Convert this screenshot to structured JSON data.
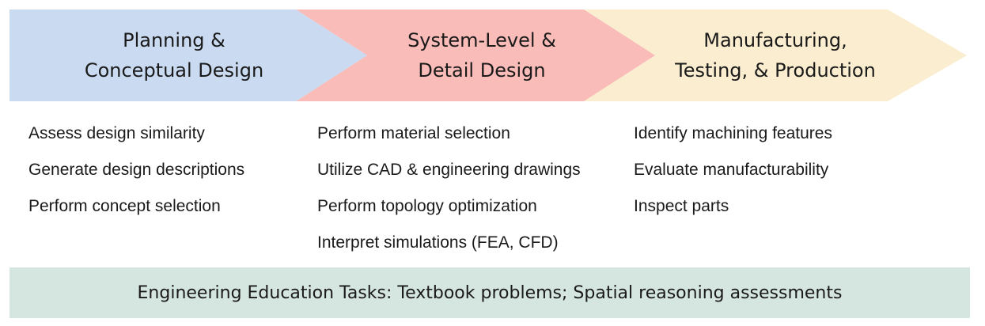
{
  "stages": [
    {
      "title": "Planning &\nConceptual Design",
      "color": "#c9daf1",
      "tasks": [
        "Assess design similarity",
        "Generate design descriptions",
        "Perform concept selection"
      ]
    },
    {
      "title": "System-Level &\nDetail  Design",
      "color": "#f9bcb8",
      "tasks": [
        "Perform material selection",
        "Utilize CAD & engineering drawings",
        "Perform topology optimization",
        "Interpret simulations (FEA, CFD)"
      ]
    },
    {
      "title": "Manufacturing,\nTesting, & Production",
      "color": "#fbeed0",
      "tasks": [
        "Identify machining features",
        "Evaluate manufacturability",
        "Inspect parts"
      ]
    }
  ],
  "footer": {
    "text": "Engineering Education Tasks: Textbook problems; Spatial reasoning assessments",
    "color": "#d5e5e0"
  }
}
